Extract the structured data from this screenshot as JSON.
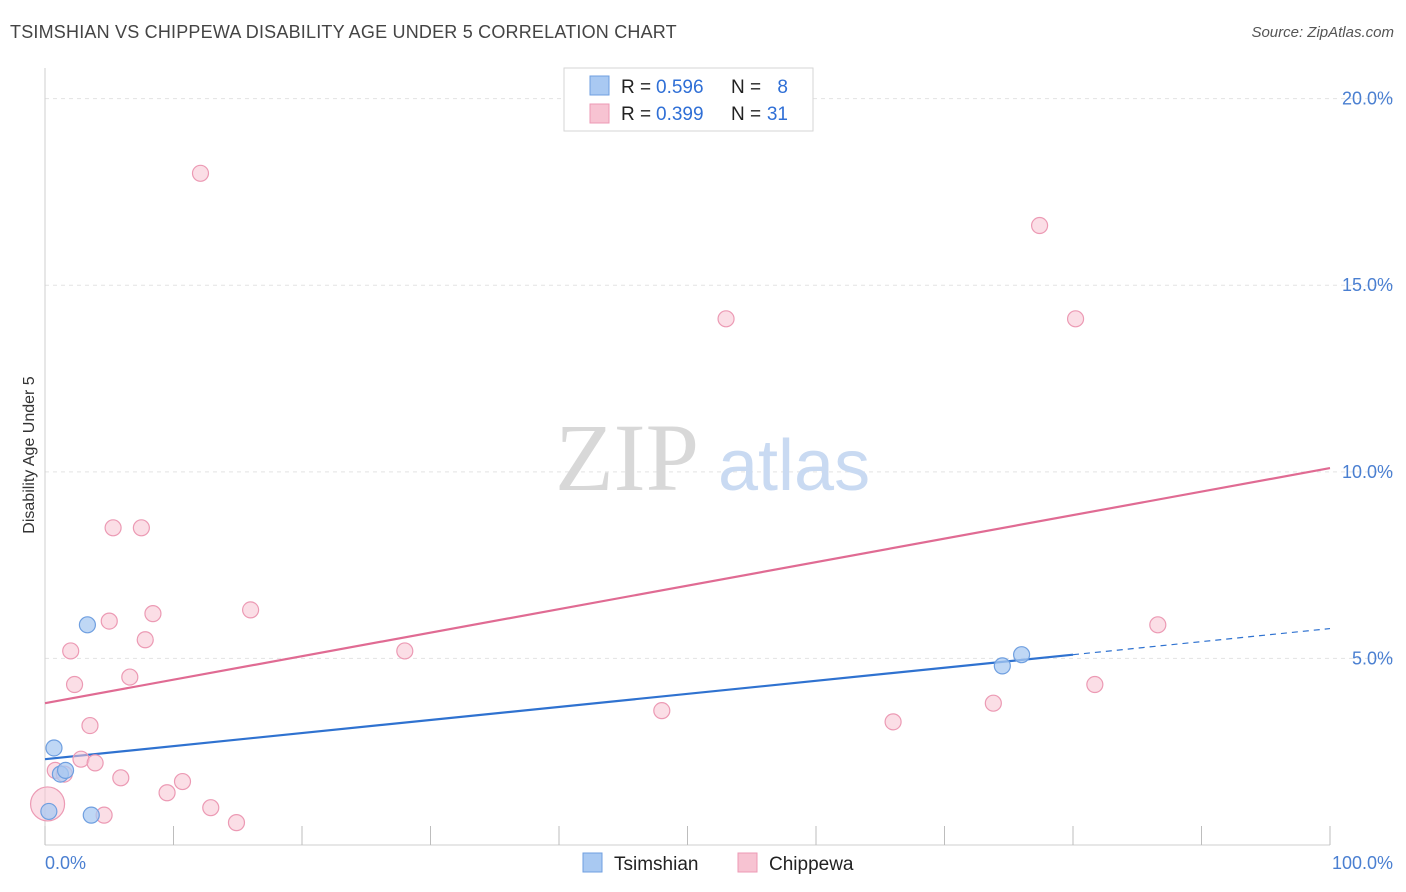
{
  "title": "TSIMSHIAN VS CHIPPEWA DISABILITY AGE UNDER 5 CORRELATION CHART",
  "source": "Source: ZipAtlas.com",
  "watermark": {
    "zip": "ZIP",
    "atlas": "atlas"
  },
  "colors": {
    "tsimshian_fill": "#a9c9f2",
    "tsimshian_stroke": "#6f9fe0",
    "tsimshian_line": "#2f72d0",
    "chippewa_fill": "#f7c3d2",
    "chippewa_stroke": "#ec9ab4",
    "chippewa_line": "#e06b93",
    "axis_text": "#4a7fd1",
    "grid": "#e3e3e3"
  },
  "legend": {
    "r_label": "R =",
    "n_label": "N =",
    "rows": [
      {
        "series": "Tsimshian",
        "r": "0.596",
        "n": "8"
      },
      {
        "series": "Chippewa",
        "r": "0.399",
        "n": "31"
      }
    ]
  },
  "chart_data": {
    "type": "scatter",
    "title": "TSIMSHIAN VS CHIPPEWA DISABILITY AGE UNDER 5 CORRELATION CHART",
    "xlabel": "",
    "ylabel": "Disability Age Under 5",
    "xlim": [
      0,
      100
    ],
    "ylim": [
      0,
      20
    ],
    "x_tick_labels": [
      "0.0%",
      "100.0%"
    ],
    "y_ticks": [
      5,
      10,
      15,
      20
    ],
    "y_tick_labels": [
      "5.0%",
      "10.0%",
      "15.0%",
      "20.0%"
    ],
    "grid": true,
    "series": [
      {
        "name": "Tsimshian",
        "points": [
          {
            "x": 0.3,
            "y": 0.9
          },
          {
            "x": 0.7,
            "y": 2.6
          },
          {
            "x": 1.2,
            "y": 1.9
          },
          {
            "x": 1.6,
            "y": 2.0
          },
          {
            "x": 3.3,
            "y": 5.9
          },
          {
            "x": 3.6,
            "y": 0.8
          },
          {
            "x": 74.5,
            "y": 4.8
          },
          {
            "x": 76.0,
            "y": 5.1
          }
        ],
        "trend": {
          "x0": 0,
          "y0": 2.3,
          "x1": 80,
          "y1": 5.1,
          "dashed_to_x": 100,
          "dashed_to_y": 5.8
        }
      },
      {
        "name": "Chippewa",
        "points": [
          {
            "x": 0.2,
            "y": 1.1,
            "size": "large"
          },
          {
            "x": 0.8,
            "y": 2.0
          },
          {
            "x": 1.5,
            "y": 1.9
          },
          {
            "x": 2.0,
            "y": 5.2
          },
          {
            "x": 2.3,
            "y": 4.3
          },
          {
            "x": 2.8,
            "y": 2.3
          },
          {
            "x": 3.5,
            "y": 3.2
          },
          {
            "x": 3.9,
            "y": 2.2
          },
          {
            "x": 4.6,
            "y": 0.8
          },
          {
            "x": 5.0,
            "y": 6.0
          },
          {
            "x": 5.3,
            "y": 8.5
          },
          {
            "x": 5.9,
            "y": 1.8
          },
          {
            "x": 6.6,
            "y": 4.5
          },
          {
            "x": 7.5,
            "y": 8.5
          },
          {
            "x": 7.8,
            "y": 5.5
          },
          {
            "x": 8.4,
            "y": 6.2
          },
          {
            "x": 9.5,
            "y": 1.4
          },
          {
            "x": 10.7,
            "y": 1.7
          },
          {
            "x": 12.1,
            "y": 18.0
          },
          {
            "x": 12.9,
            "y": 1.0
          },
          {
            "x": 14.9,
            "y": 0.6
          },
          {
            "x": 16.0,
            "y": 6.3
          },
          {
            "x": 28.0,
            "y": 5.2
          },
          {
            "x": 48.0,
            "y": 3.6
          },
          {
            "x": 53.0,
            "y": 14.1
          },
          {
            "x": 66.0,
            "y": 3.3
          },
          {
            "x": 73.8,
            "y": 3.8
          },
          {
            "x": 77.4,
            "y": 16.6
          },
          {
            "x": 80.2,
            "y": 14.1
          },
          {
            "x": 81.7,
            "y": 4.3
          },
          {
            "x": 86.6,
            "y": 5.9
          }
        ],
        "trend": {
          "x0": 0,
          "y0": 3.8,
          "x1": 100,
          "y1": 10.1
        }
      }
    ]
  }
}
